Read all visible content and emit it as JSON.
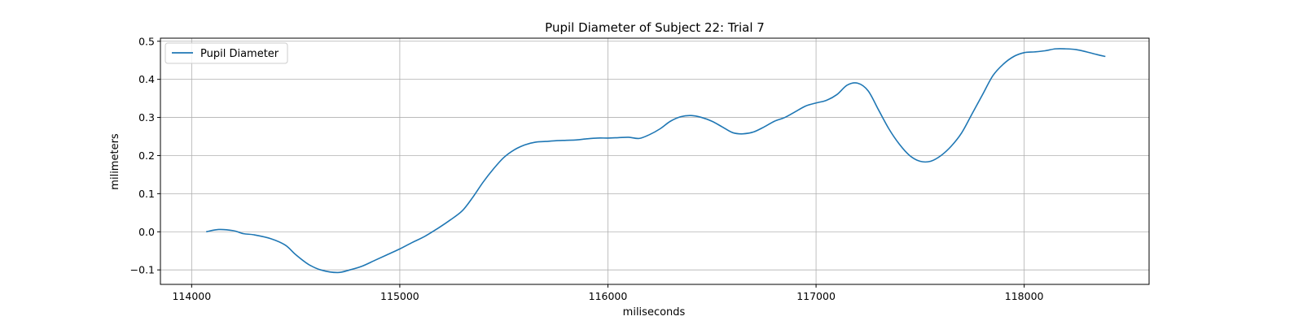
{
  "chart_data": {
    "type": "line",
    "title": "Pupil Diameter of Subject 22: Trial 7",
    "xlabel": "miliseconds",
    "ylabel": "milimeters",
    "xlim": [
      113850,
      118600
    ],
    "ylim": [
      -0.138,
      0.508
    ],
    "xticks": [
      114000,
      115000,
      116000,
      117000,
      118000
    ],
    "yticks": [
      -0.1,
      0.0,
      0.1,
      0.2,
      0.3,
      0.4,
      0.5
    ],
    "xtick_labels": [
      "114000",
      "115000",
      "116000",
      "117000",
      "118000"
    ],
    "ytick_labels": [
      "−0.1",
      "0.0",
      "0.1",
      "0.2",
      "0.3",
      "0.4",
      "0.5"
    ],
    "grid": true,
    "legend": {
      "placement": "upper-left",
      "entries": [
        "Pupil Diameter"
      ]
    },
    "colors": {
      "series": "#1f77b4",
      "grid": "#b0b0b0"
    },
    "series": [
      {
        "name": "Pupil Diameter",
        "x": [
          114070,
          114130,
          114200,
          114250,
          114300,
          114380,
          114450,
          114500,
          114560,
          114620,
          114700,
          114760,
          114820,
          114880,
          114940,
          115000,
          115060,
          115120,
          115180,
          115240,
          115300,
          115350,
          115400,
          115450,
          115500,
          115550,
          115600,
          115650,
          115700,
          115750,
          115800,
          115850,
          115900,
          115950,
          116000,
          116050,
          116100,
          116150,
          116200,
          116250,
          116300,
          116350,
          116400,
          116450,
          116500,
          116550,
          116600,
          116650,
          116700,
          116750,
          116800,
          116850,
          116900,
          116950,
          117000,
          117050,
          117100,
          117150,
          117200,
          117250,
          117300,
          117350,
          117400,
          117450,
          117500,
          117550,
          117600,
          117650,
          117700,
          117750,
          117800,
          117850,
          117900,
          117950,
          118000,
          118050,
          118100,
          118150,
          118200,
          118250,
          118300,
          118350,
          118390
        ],
        "y": [
          0.0,
          0.006,
          0.003,
          -0.005,
          -0.008,
          -0.018,
          -0.035,
          -0.06,
          -0.085,
          -0.1,
          -0.107,
          -0.1,
          -0.09,
          -0.075,
          -0.06,
          -0.045,
          -0.028,
          -0.012,
          0.008,
          0.03,
          0.055,
          0.09,
          0.13,
          0.165,
          0.195,
          0.215,
          0.228,
          0.235,
          0.237,
          0.239,
          0.24,
          0.241,
          0.244,
          0.246,
          0.246,
          0.247,
          0.248,
          0.245,
          0.255,
          0.27,
          0.29,
          0.302,
          0.305,
          0.3,
          0.29,
          0.275,
          0.26,
          0.257,
          0.262,
          0.275,
          0.29,
          0.3,
          0.315,
          0.33,
          0.338,
          0.345,
          0.36,
          0.385,
          0.39,
          0.37,
          0.32,
          0.27,
          0.23,
          0.2,
          0.185,
          0.185,
          0.2,
          0.225,
          0.26,
          0.31,
          0.36,
          0.41,
          0.44,
          0.46,
          0.47,
          0.472,
          0.475,
          0.48,
          0.48,
          0.478,
          0.472,
          0.465,
          0.46
        ]
      }
    ]
  }
}
